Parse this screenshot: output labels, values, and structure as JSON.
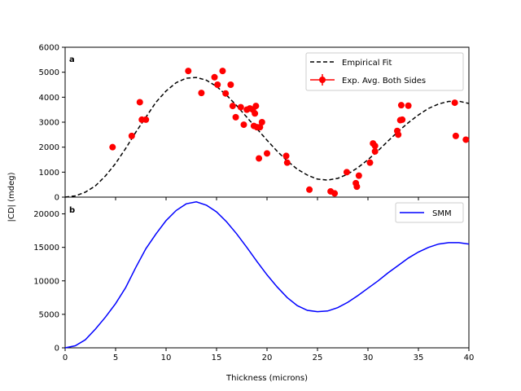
{
  "chart_data": [
    {
      "type": "scatter",
      "panel_label": "a",
      "xlim": [
        0,
        40
      ],
      "ylim": [
        0,
        6000
      ],
      "x_ticks": [
        0,
        5,
        10,
        15,
        20,
        25,
        30,
        35,
        40
      ],
      "y_ticks": [
        0,
        1000,
        2000,
        3000,
        4000,
        5000,
        6000
      ],
      "y_tick_labels": [
        "0",
        "1000",
        "2000",
        "3000",
        "4000",
        "5000",
        "6000"
      ],
      "grid": false,
      "legend_position": "top-right",
      "series": [
        {
          "name": "Empirical Fit",
          "kind": "line",
          "style": "dashed",
          "color": "#000000",
          "x": [
            0,
            1,
            2,
            3,
            4,
            5,
            6,
            7,
            8,
            9,
            10,
            11,
            12,
            13,
            14,
            15,
            16,
            17,
            18,
            19,
            20,
            21,
            22,
            23,
            24,
            25,
            26,
            27,
            28,
            29,
            30,
            31,
            32,
            33,
            34,
            35,
            36,
            37,
            38,
            39,
            40
          ],
          "y": [
            0,
            50,
            200,
            450,
            850,
            1350,
            1950,
            2600,
            3200,
            3800,
            4250,
            4580,
            4760,
            4790,
            4680,
            4430,
            4080,
            3660,
            3200,
            2740,
            2280,
            1840,
            1450,
            1120,
            880,
            720,
            680,
            750,
            920,
            1180,
            1500,
            1860,
            2250,
            2630,
            2980,
            3290,
            3550,
            3730,
            3830,
            3840,
            3750
          ]
        },
        {
          "name": "Exp. Avg. Both Sides",
          "kind": "scatter",
          "color": "#ff0000",
          "x": [
            4.7,
            6.6,
            7.4,
            7.6,
            8.0,
            12.2,
            13.5,
            14.8,
            15.1,
            15.6,
            15.9,
            16.4,
            16.6,
            16.9,
            17.4,
            17.7,
            18.0,
            18.3,
            18.6,
            18.7,
            18.8,
            18.9,
            19.0,
            19.2,
            19.3,
            19.5,
            20.0,
            21.9,
            22.0,
            24.2,
            26.3,
            26.7,
            27.9,
            28.8,
            28.9,
            29.1,
            30.2,
            30.5,
            30.7,
            30.7,
            32.9,
            33.0,
            33.2,
            33.3,
            33.4,
            34.0,
            38.6,
            38.7,
            39.7
          ],
          "y": [
            2000,
            2450,
            3800,
            3100,
            3100,
            5050,
            4170,
            4800,
            4500,
            5050,
            4150,
            4500,
            3650,
            3200,
            3600,
            2900,
            3500,
            3550,
            3500,
            2850,
            3350,
            3650,
            2800,
            1550,
            2800,
            3000,
            1750,
            1650,
            1380,
            300,
            230,
            150,
            1000,
            560,
            420,
            860,
            1380,
            2150,
            2050,
            1830,
            2650,
            2500,
            3080,
            3680,
            3100,
            3660,
            3780,
            2450,
            2300
          ]
        }
      ]
    },
    {
      "type": "line",
      "panel_label": "b",
      "xlabel": "Thickness (microns)",
      "xlim": [
        0,
        40
      ],
      "ylim": [
        0,
        22500
      ],
      "x_ticks": [
        0,
        5,
        10,
        15,
        20,
        25,
        30,
        35,
        40
      ],
      "x_tick_labels": [
        "0",
        "5",
        "10",
        "15",
        "20",
        "25",
        "30",
        "35",
        "40"
      ],
      "y_ticks": [
        0,
        5000,
        10000,
        15000,
        20000
      ],
      "y_tick_labels": [
        "0",
        "5000",
        "10000",
        "15000",
        "20000"
      ],
      "grid": false,
      "legend_position": "top-right",
      "series": [
        {
          "name": "SMM",
          "kind": "line",
          "color": "#0000ff",
          "x": [
            0,
            1,
            2,
            3,
            4,
            5,
            6,
            7,
            8,
            9,
            10,
            11,
            12,
            13,
            14,
            15,
            16,
            17,
            18,
            19,
            20,
            21,
            22,
            23,
            24,
            25,
            26,
            27,
            28,
            29,
            30,
            31,
            32,
            33,
            34,
            35,
            36,
            37,
            38,
            39,
            40
          ],
          "y": [
            0,
            300,
            1200,
            2800,
            4600,
            6600,
            9000,
            12000,
            14800,
            17000,
            19000,
            20500,
            21500,
            21800,
            21300,
            20300,
            18800,
            17000,
            15000,
            12900,
            10900,
            9100,
            7500,
            6300,
            5600,
            5400,
            5500,
            6000,
            6800,
            7800,
            8900,
            10000,
            11200,
            12300,
            13400,
            14300,
            15000,
            15500,
            15700,
            15700,
            15500
          ]
        }
      ]
    }
  ],
  "shared_ylabel": "|CD| (mdeg)"
}
